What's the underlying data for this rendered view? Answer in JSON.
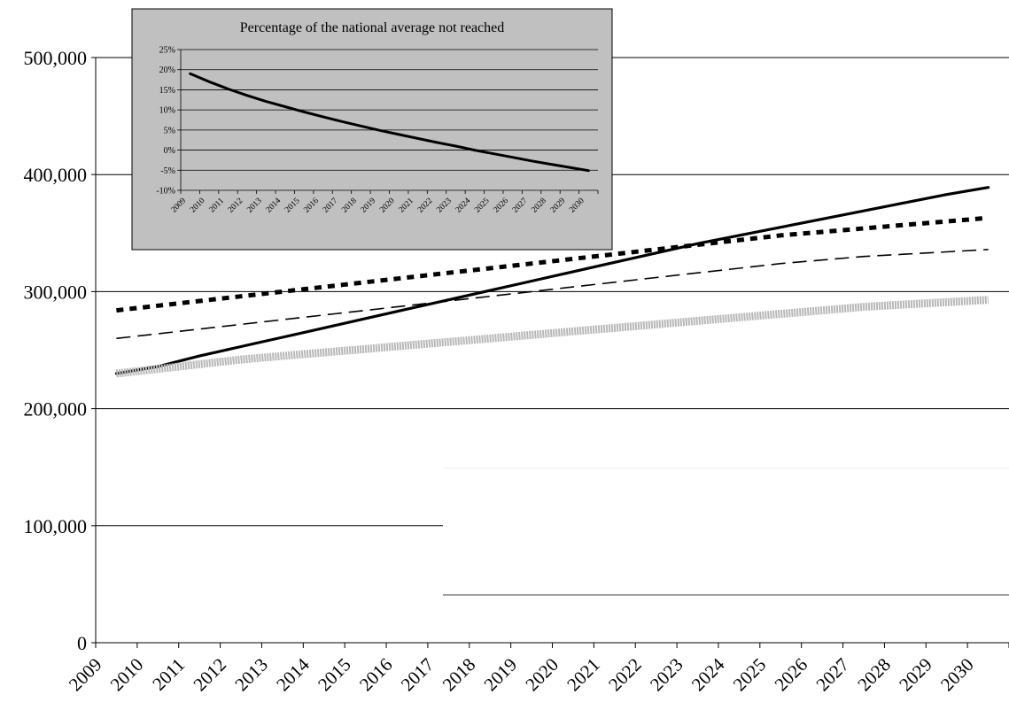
{
  "chart_data": [
    {
      "type": "line",
      "x": [
        "2009",
        "2010",
        "2011",
        "2012",
        "2013",
        "2014",
        "2015",
        "2016",
        "2017",
        "2018",
        "2019",
        "2020",
        "2021",
        "2022",
        "2023",
        "2024",
        "2025",
        "2026",
        "2027",
        "2028",
        "2029",
        "2030"
      ],
      "ylim": [
        0,
        500000
      ],
      "yticks": [
        0,
        100000,
        200000,
        300000,
        400000,
        500000
      ],
      "ytick_labels": [
        "0",
        "100,000",
        "200,000",
        "300,000",
        "400,000",
        "500,000"
      ],
      "grid": true,
      "series": [
        {
          "style": "solid-thick",
          "color": "#000000",
          "values": [
            230000,
            236000,
            245000,
            253000,
            261000,
            269000,
            277000,
            285000,
            293000,
            301000,
            309000,
            317000,
            325000,
            333000,
            341000,
            348000,
            355000,
            362000,
            369000,
            376000,
            383000,
            389000
          ]
        },
        {
          "style": "dotted-thick",
          "color": "#000000",
          "values": [
            284000,
            288000,
            292000,
            296000,
            300000,
            304000,
            308000,
            312000,
            316000,
            320000,
            324000,
            328000,
            332000,
            336000,
            340000,
            344000,
            348000,
            351000,
            354000,
            357000,
            360000,
            363000
          ]
        },
        {
          "style": "dashed",
          "color": "#000000",
          "values": [
            260000,
            264000,
            268000,
            272000,
            276000,
            280000,
            284000,
            288000,
            292000,
            296000,
            300000,
            304000,
            308000,
            312000,
            316000,
            320000,
            324000,
            327000,
            330000,
            332000,
            334000,
            336000
          ]
        },
        {
          "style": "grey-band",
          "color": "#b8b8b8",
          "values": [
            230000,
            234000,
            238000,
            242000,
            245000,
            248000,
            251000,
            254000,
            257000,
            260000,
            263000,
            266000,
            269000,
            272000,
            275000,
            278000,
            281000,
            284000,
            287000,
            289000,
            291000,
            293000
          ]
        }
      ]
    },
    {
      "type": "line",
      "title": "Percentage of the national average not reached",
      "x": [
        "2009",
        "2010",
        "2011",
        "2012",
        "2013",
        "2014",
        "2015",
        "2016",
        "2017",
        "2018",
        "2019",
        "2020",
        "2021",
        "2022",
        "2023",
        "2024",
        "2025",
        "2026",
        "2027",
        "2028",
        "2029",
        "2030"
      ],
      "ylim": [
        -10,
        25
      ],
      "yticks": [
        -10,
        -5,
        0,
        5,
        10,
        15,
        20,
        25
      ],
      "ytick_labels": [
        "-10%",
        "-5%",
        "0%",
        "5%",
        "10%",
        "15%",
        "20%",
        "25%"
      ],
      "grid": true,
      "series": [
        {
          "style": "solid-thick",
          "color": "#000000",
          "values": [
            19.0,
            17.0,
            15.2,
            13.6,
            12.1,
            10.8,
            9.5,
            8.3,
            7.1,
            6.0,
            4.9,
            3.9,
            2.9,
            1.9,
            1.0,
            0.0,
            -0.9,
            -1.8,
            -2.7,
            -3.5,
            -4.3,
            -5.1
          ]
        }
      ]
    }
  ]
}
